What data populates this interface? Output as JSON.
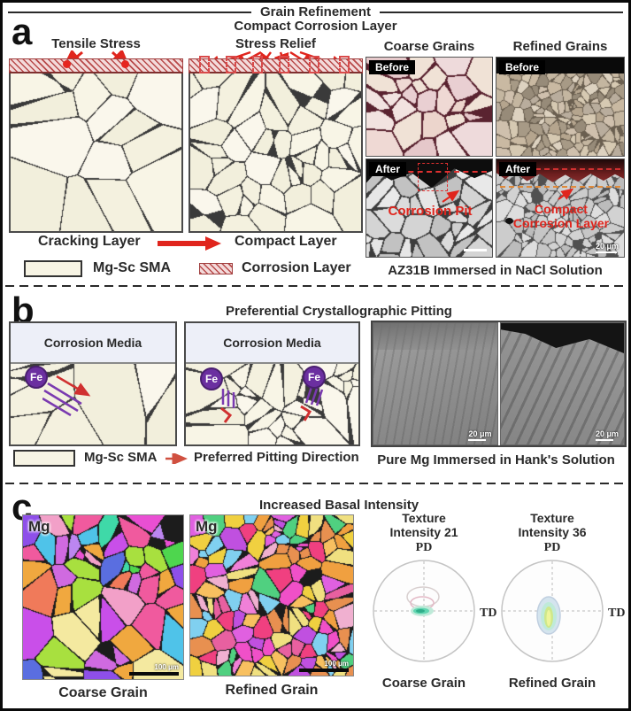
{
  "header": {
    "title": "Grain Refinement",
    "subtitle": "Compact Corrosion Layer"
  },
  "panel_a": {
    "label": "a",
    "left_diagram_title": "Tensile Stress",
    "right_diagram_title": "Stress Relief",
    "flow": {
      "from": "Cracking Layer",
      "to": "Compact Layer"
    },
    "legend": {
      "material": "Mg-Sc SMA",
      "layer": "Corrosion Layer"
    },
    "micrographs": {
      "col1_title": "Coarse Grains",
      "col2_title": "Refined Grains",
      "before_label": "Before",
      "after_label": "After",
      "annotation_pit": "Corrosion Pit",
      "annotation_layer": "Compact Corrosion Layer",
      "scale_bar": "20 μm",
      "caption": "AZ31B Immersed in NaCl Solution"
    }
  },
  "panel_b": {
    "label": "b",
    "title": "Preferential Crystallographic Pitting",
    "media_label": "Corrosion Media",
    "fe_label": "Fe",
    "legend": {
      "material": "Mg-Sc SMA",
      "direction": "Preferred Pitting Direction"
    },
    "sem": {
      "scale_bar": "20 μm",
      "caption": "Pure Mg Immersed in Hank's Solution"
    }
  },
  "panel_c": {
    "label": "c",
    "title": "Increased Basal Intensity",
    "maps": {
      "material_label": "Mg",
      "scale_bar": "100 μm",
      "left_caption": "Coarse Grain",
      "right_caption": "Refined Grain"
    },
    "pole_figures": [
      {
        "title_line1": "Texture",
        "title_line2": "Intensity 21",
        "axis_top": "PD",
        "axis_right": "TD",
        "caption": "Coarse Grain"
      },
      {
        "title_line1": "Texture",
        "title_line2": "Intensity 36",
        "axis_top": "PD",
        "axis_right": "TD",
        "caption": "Refined Grain"
      }
    ]
  },
  "colors": {
    "accent_red": "#e0251d",
    "fe_purple": "#6b2fa0",
    "grain_cream": "#f7f4e4",
    "hatch_red": "#b84a4a",
    "media_lavender": "#edeff8",
    "pole_blob_teal": "#5fd6b0"
  }
}
